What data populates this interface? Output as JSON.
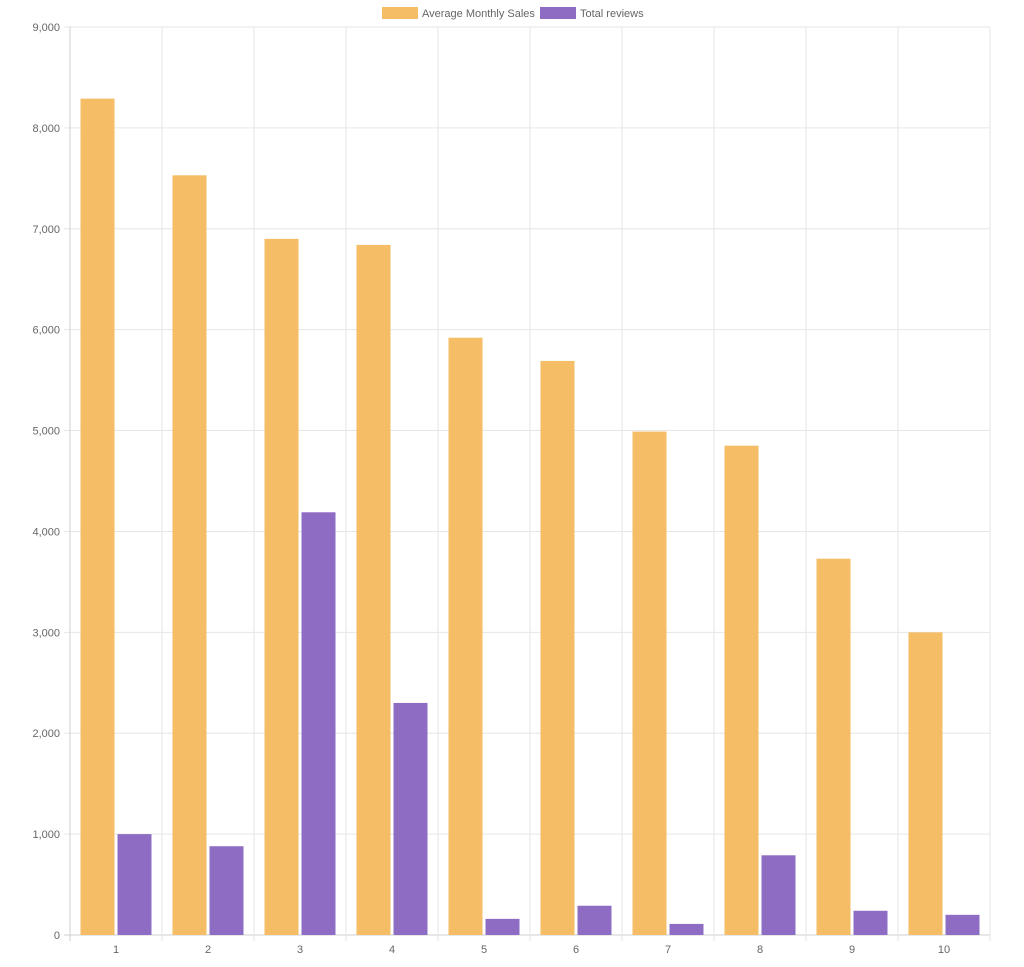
{
  "chart_data": {
    "type": "bar",
    "categories": [
      "1",
      "2",
      "3",
      "4",
      "5",
      "6",
      "7",
      "8",
      "9",
      "10"
    ],
    "series": [
      {
        "name": "Average Monthly Sales",
        "color": "#f5bd66",
        "values": [
          8290,
          7530,
          6900,
          6840,
          5920,
          5690,
          4990,
          4850,
          3730,
          3000
        ]
      },
      {
        "name": "Total reviews",
        "color": "#8e6cc4",
        "values": [
          1000,
          880,
          4190,
          2300,
          160,
          290,
          110,
          790,
          240,
          200
        ]
      }
    ],
    "y_ticks": [
      "0",
      "1,000",
      "2,000",
      "3,000",
      "4,000",
      "5,000",
      "6,000",
      "7,000",
      "8,000",
      "9,000"
    ],
    "ylim": [
      0,
      9000
    ],
    "grid": true,
    "legend_position": "top-center"
  }
}
